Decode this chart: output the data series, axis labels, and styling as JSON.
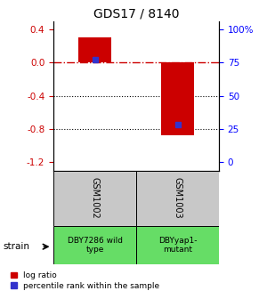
{
  "title": "GDS17 / 8140",
  "samples": [
    "GSM1002",
    "GSM1003"
  ],
  "sample_labels": [
    "DBY7286 wild\ntype",
    "DBYyap1-\nmutant"
  ],
  "log_ratios": [
    0.3,
    -0.88
  ],
  "percentile_ranks_pct": [
    77,
    28
  ],
  "left_yticks": [
    0.4,
    0.0,
    -0.4,
    -0.8,
    -1.2
  ],
  "right_yticks": [
    0,
    25,
    50,
    75,
    100
  ],
  "ylim": [
    -1.3,
    0.5
  ],
  "bar_color": "#cc0000",
  "dot_color": "#3333cc",
  "zero_line_color": "#cc0000",
  "legend_red_label": "log ratio",
  "legend_blue_label": "percentile rank within the sample",
  "strain_label": "strain",
  "sample_bg_color": "#c8c8c8",
  "strain_bg_color": "#66dd66",
  "bar_width": 0.4
}
